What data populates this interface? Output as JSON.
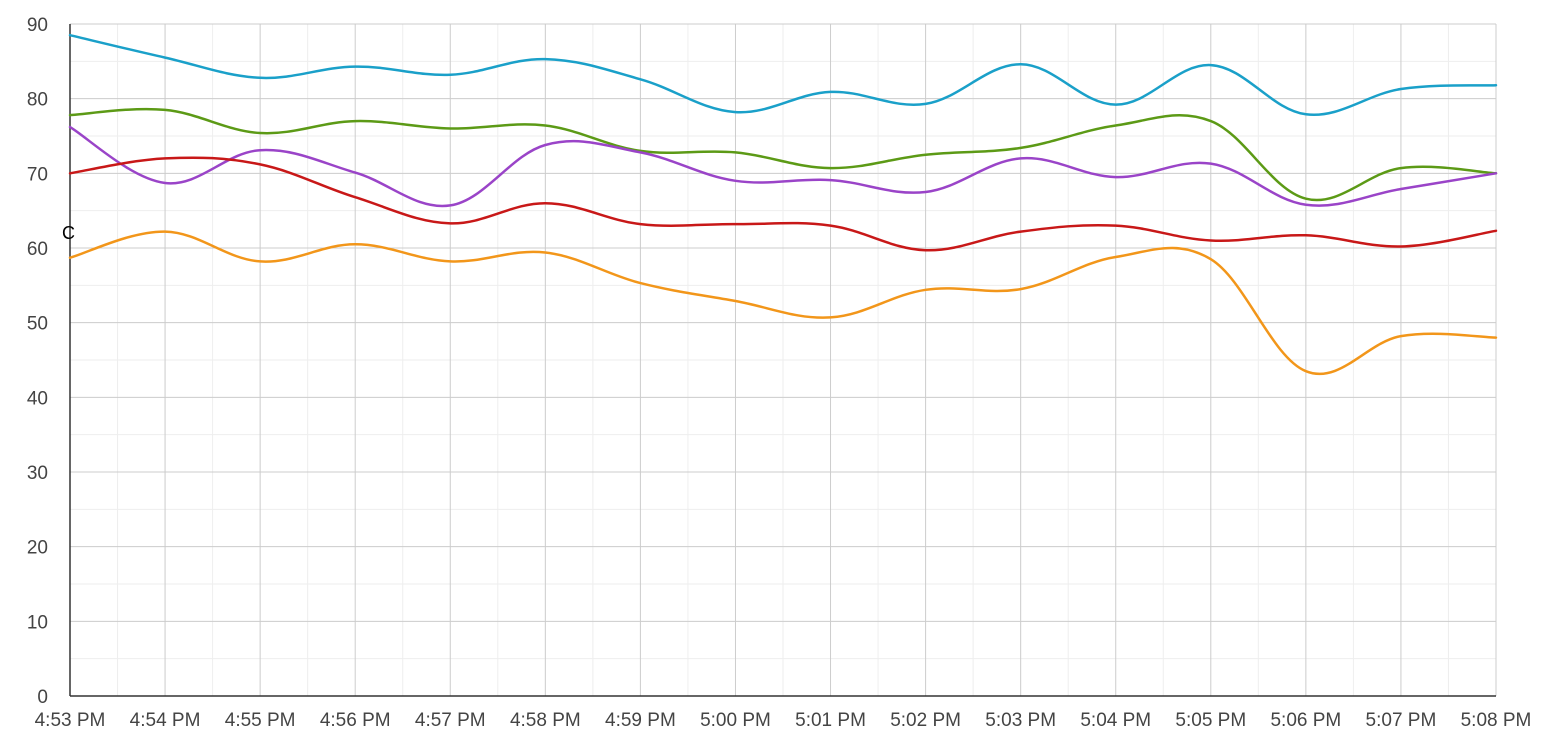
{
  "chart_data": {
    "type": "line",
    "unit_label": "C",
    "grid": true,
    "ylim": [
      0,
      90
    ],
    "y_ticks": [
      "0",
      "10",
      "20",
      "30",
      "40",
      "50",
      "60",
      "70",
      "80",
      "90"
    ],
    "categories": [
      "4:53 PM",
      "4:54 PM",
      "4:55 PM",
      "4:56 PM",
      "4:57 PM",
      "4:58 PM",
      "4:59 PM",
      "5:00 PM",
      "5:01 PM",
      "5:02 PM",
      "5:03 PM",
      "5:04 PM",
      "5:05 PM",
      "5:06 PM",
      "5:07 PM",
      "5:08 PM"
    ],
    "series": [
      {
        "color": "#1aa0c9",
        "values": [
          88.5,
          85.5,
          82.8,
          84.3,
          83.2,
          85.3,
          82.6,
          78.2,
          80.9,
          79.3,
          84.6,
          79.2,
          84.5,
          77.9,
          81.3,
          81.8
        ]
      },
      {
        "color": "#5c9a16",
        "values": [
          77.8,
          78.5,
          75.4,
          77.0,
          76.0,
          76.4,
          73.0,
          72.8,
          70.7,
          72.5,
          73.4,
          76.4,
          77.0,
          66.6,
          70.7,
          70.0
        ]
      },
      {
        "color": "#9a44c8",
        "values": [
          76.2,
          68.7,
          73.1,
          70.1,
          65.7,
          73.8,
          72.8,
          69.0,
          69.1,
          67.5,
          72.0,
          69.5,
          71.3,
          65.8,
          67.9,
          70.0
        ]
      },
      {
        "color": "#c81818",
        "values": [
          70.0,
          72.0,
          71.2,
          66.8,
          63.3,
          66.0,
          63.2,
          63.2,
          63.0,
          59.7,
          62.2,
          63.0,
          61.0,
          61.7,
          60.2,
          62.3
        ]
      },
      {
        "color": "#f2961a",
        "values": [
          58.7,
          62.2,
          58.2,
          60.5,
          58.2,
          59.4,
          55.3,
          52.9,
          50.7,
          54.4,
          54.5,
          58.8,
          58.5,
          43.5,
          48.2,
          48.0
        ]
      }
    ]
  }
}
